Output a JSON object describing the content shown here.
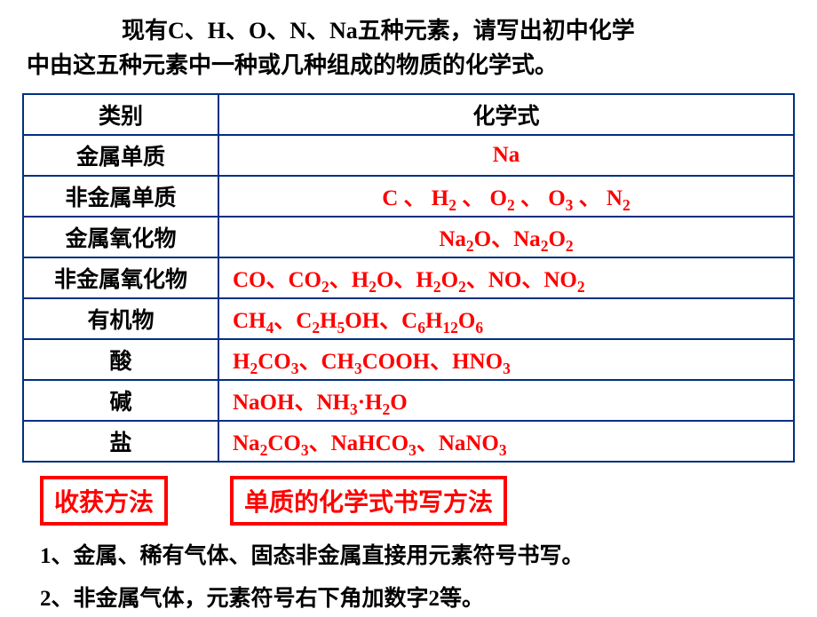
{
  "intro": {
    "line1": "现有C、H、O、N、Na五种元素，请写出初中化学",
    "line2": "中由这五种元素中一种或几种组成的物质的化学式。"
  },
  "table": {
    "header_category": "类别",
    "header_formula": "化学式",
    "rows": [
      {
        "category": "金属单质",
        "formula_html": "Na",
        "align": "center"
      },
      {
        "category": "非金属单质",
        "formula_html": "C 、 H<span class='sub'>2</span> 、 O<span class='sub'>2</span> 、 O<span class='sub'>3</span> 、 N<span class='sub'>2</span>",
        "align": "center"
      },
      {
        "category": "金属氧化物",
        "formula_html": "Na<span class='sub'>2</span>O、Na<span class='sub'>2</span>O<span class='sub'>2</span>",
        "align": "center"
      },
      {
        "category": "非金属氧化物",
        "formula_html": "CO、CO<span class='sub'>2</span>、H<span class='sub'>2</span>O、H<span class='sub'>2</span>O<span class='sub'>2</span>、NO、NO<span class='sub'>2</span>",
        "align": "left"
      },
      {
        "category": "有机物",
        "formula_html": "CH<span class='sub'>4</span>、C<span class='sub'>2</span>H<span class='sub'>5</span>OH、C<span class='sub'>6</span>H<span class='sub'>12</span>O<span class='sub'>6</span>",
        "align": "left"
      },
      {
        "category": "酸",
        "formula_html": "H<span class='sub'>2</span>CO<span class='sub'>3</span>、CH<span class='sub'>3</span>COOH、HNO<span class='sub'>3</span>",
        "align": "left"
      },
      {
        "category": "碱",
        "formula_html": "NaOH、NH<span class='sub'>3</span>·H<span class='sub'>2</span>O",
        "align": "left"
      },
      {
        "category": "盐",
        "formula_html": "Na<span class='sub'>2</span>CO<span class='sub'>3</span>、NaHCO<span class='sub'>3</span>、NaNO<span class='sub'>3</span>",
        "align": "left"
      }
    ]
  },
  "method": {
    "box1": "收获方法",
    "box2": "单质的化学式书写方法"
  },
  "notes": {
    "note1": "1、金属、稀有气体、固态非金属直接用元素符号书写。",
    "note2": "2、非金属气体，元素符号右下角加数字2等。"
  },
  "colors": {
    "border": "#003080",
    "red": "#ff0000",
    "text": "#000000",
    "bg": "#ffffff"
  }
}
